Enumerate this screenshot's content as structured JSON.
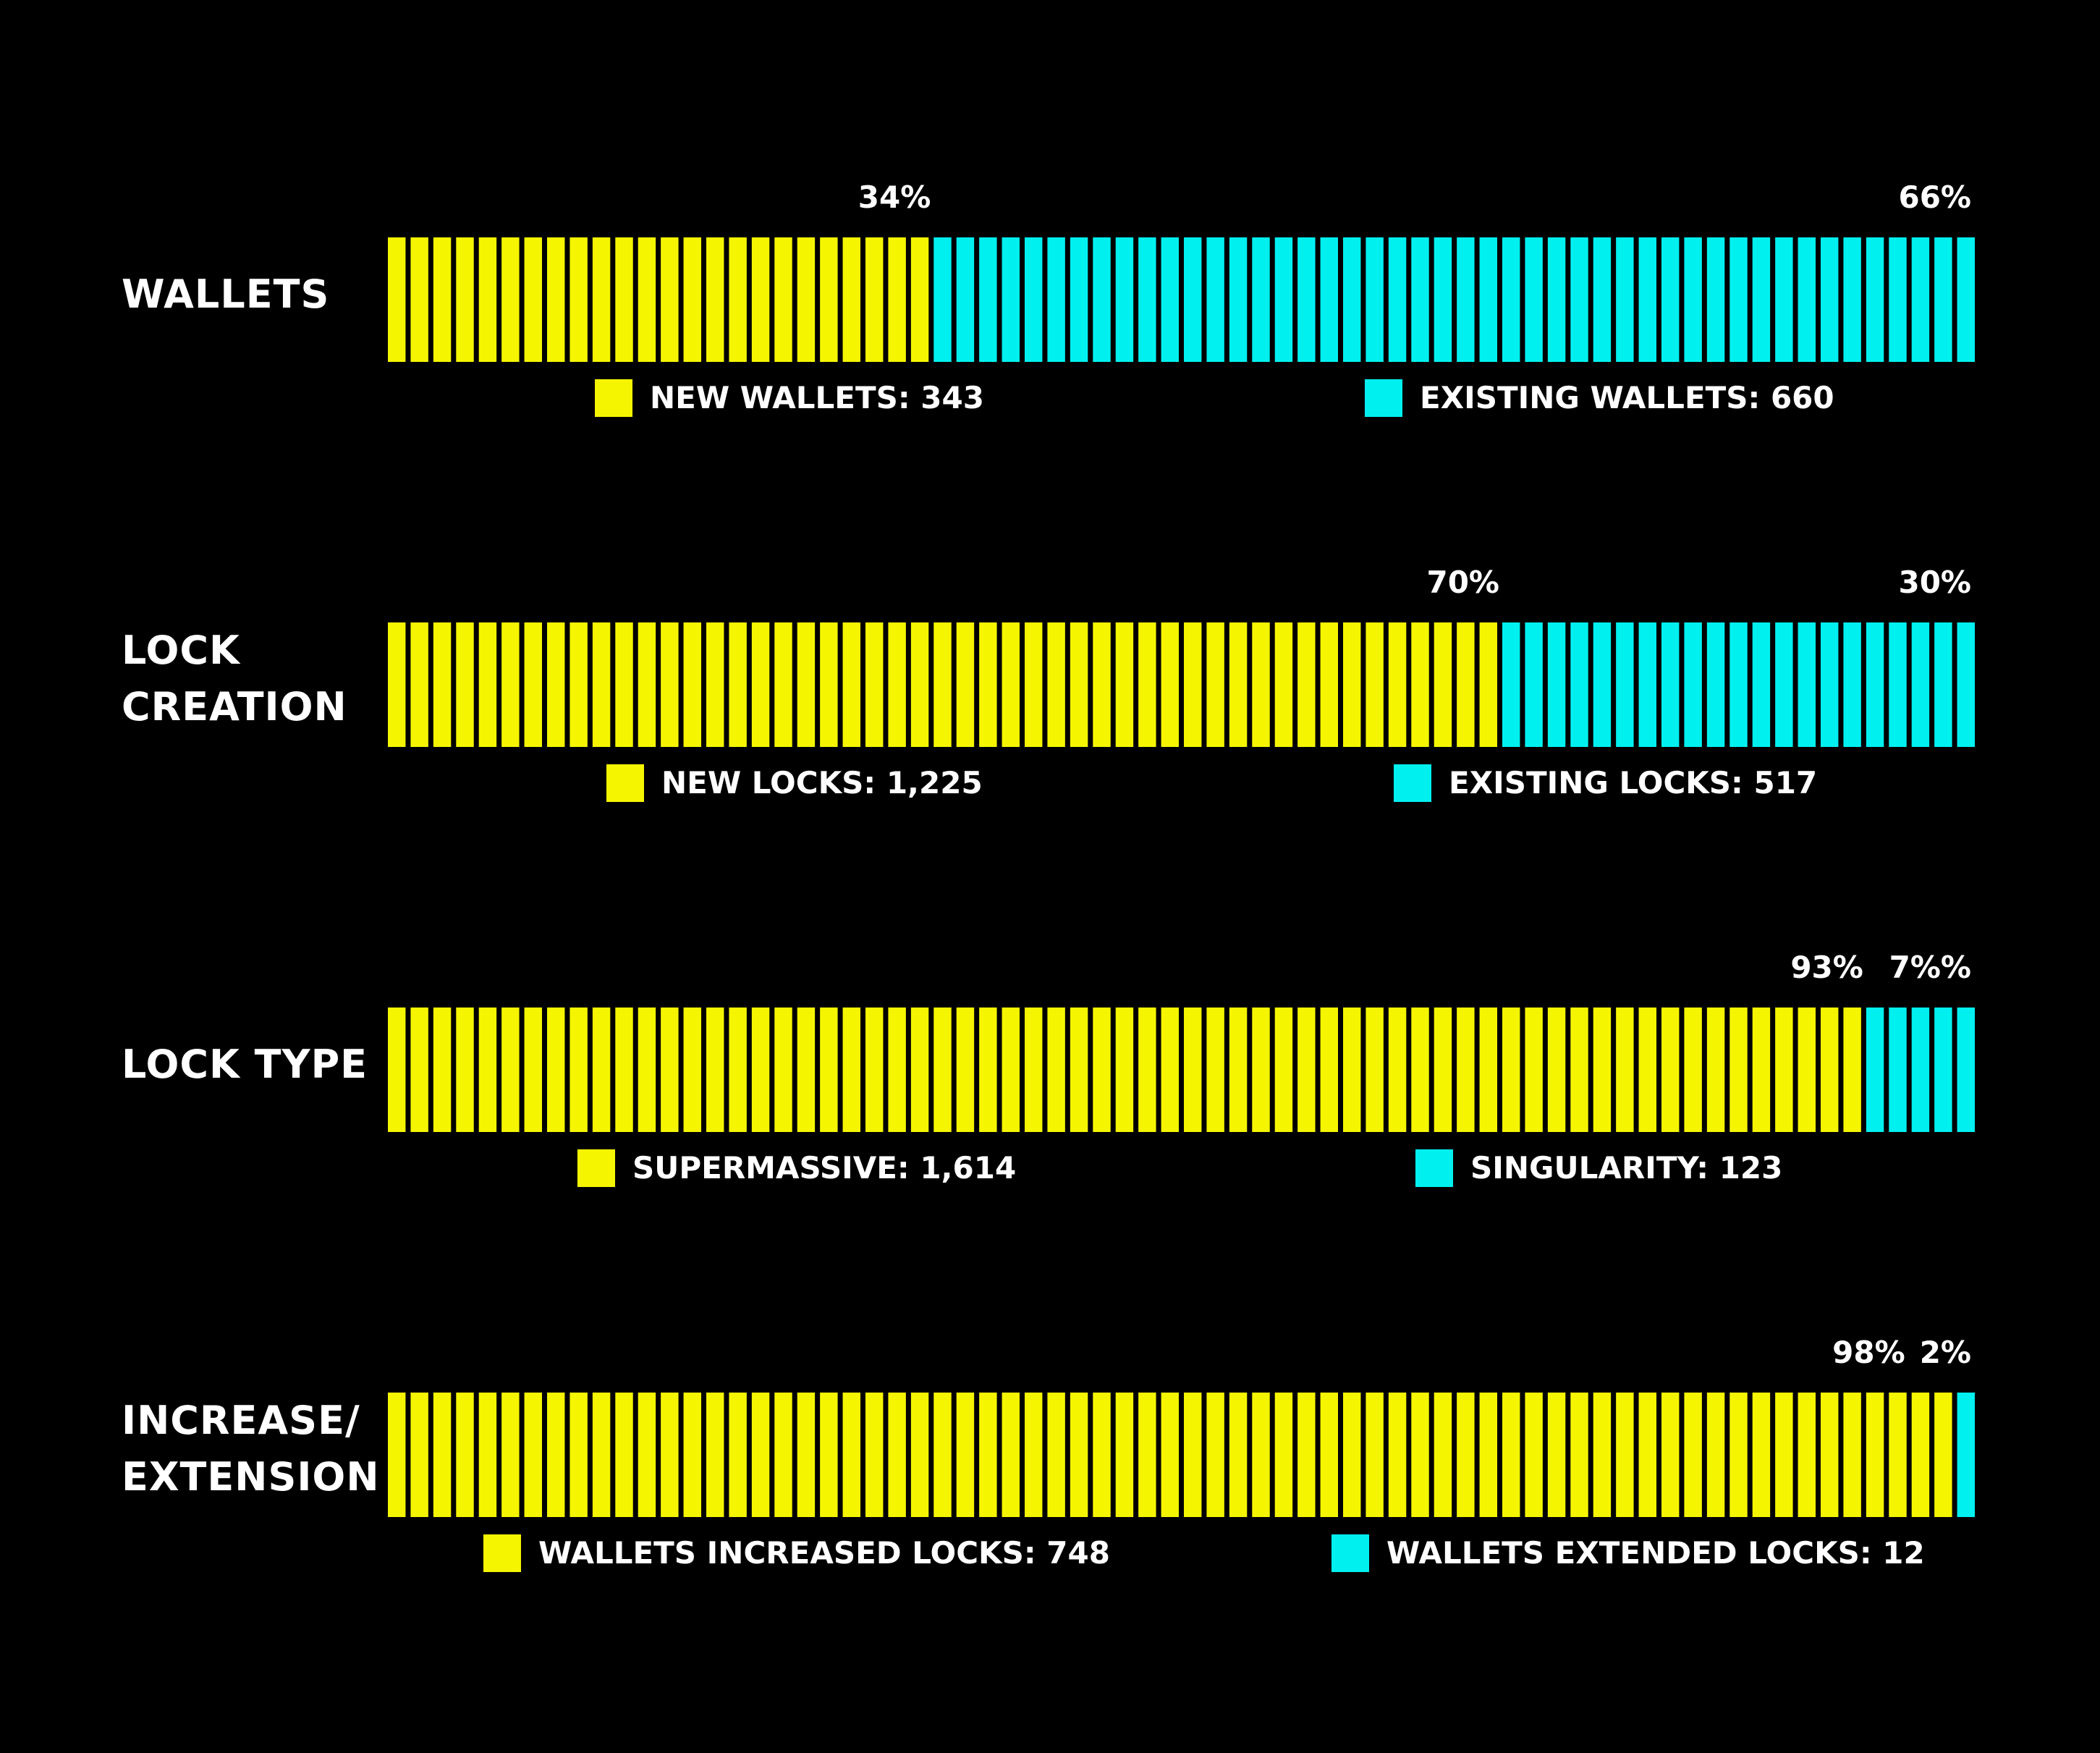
{
  "colors": {
    "background": "#000000",
    "text": "#ffffff",
    "segment_a": "#f5f500",
    "segment_b": "#00f0f0"
  },
  "chart_data": {
    "type": "bar",
    "orientation": "horizontal",
    "stacked": true,
    "segments_per_bar": 70,
    "legend_placement": "below-each-bar",
    "grid": false,
    "rows": [
      {
        "label": "WALLETS",
        "percent_a": "34%",
        "percent_b": "66%",
        "share_a": 34,
        "share_b": 66,
        "series": [
          {
            "name": "NEW WALLETS:",
            "value": 343,
            "display": "343"
          },
          {
            "name": "EXISTING WALLETS:",
            "value": 660,
            "display": "660"
          }
        ]
      },
      {
        "label": "LOCK\nCREATION",
        "percent_a": "70%",
        "percent_b": "30%",
        "share_a": 70,
        "share_b": 30,
        "series": [
          {
            "name": "NEW LOCKS:",
            "value": 1225,
            "display": "1,225"
          },
          {
            "name": "EXISTING LOCKS:",
            "value": 517,
            "display": "517"
          }
        ]
      },
      {
        "label": "LOCK TYPE",
        "percent_a": "93%",
        "percent_b": "7%%",
        "share_a": 93,
        "share_b": 7,
        "series": [
          {
            "name": "SUPERMASSIVE:",
            "value": 1614,
            "display": "1,614"
          },
          {
            "name": "SINGULARITY:",
            "value": 123,
            "display": "123"
          }
        ]
      },
      {
        "label": "INCREASE/\nEXTENSION",
        "percent_a": "98%",
        "percent_b": "2%",
        "share_a": 98,
        "share_b": 2,
        "series": [
          {
            "name": "WALLETS INCREASED LOCKS:",
            "value": 748,
            "display": "748"
          },
          {
            "name": "WALLETS EXTENDED LOCKS:",
            "value": 12,
            "display": "12"
          }
        ]
      }
    ]
  }
}
